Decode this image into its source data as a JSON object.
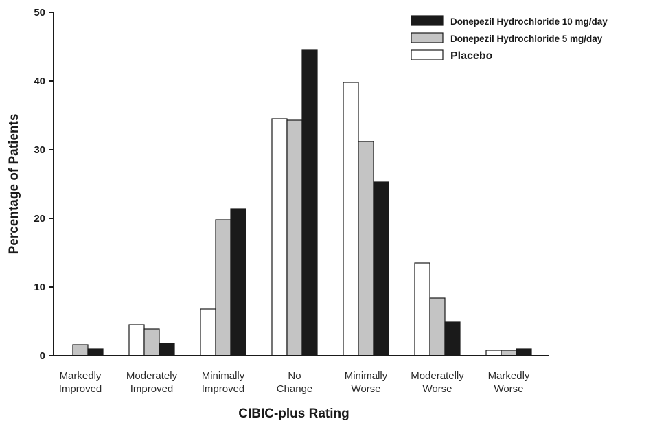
{
  "chart_data": {
    "type": "bar",
    "xlabel": "CIBIC-plus Rating",
    "ylabel": "Percentage of Patients",
    "ylim": [
      0,
      50
    ],
    "yticks": [
      0,
      10,
      20,
      30,
      40,
      50
    ],
    "categories": [
      [
        "Markedly",
        "Improved"
      ],
      [
        "Moderately",
        "Improved"
      ],
      [
        "Minimally",
        "Improved"
      ],
      [
        "No",
        "Change"
      ],
      [
        "Minimally",
        "Worse"
      ],
      [
        "Moderatelly",
        "Worse"
      ],
      [
        "Markedly",
        "Worse"
      ]
    ],
    "series": [
      {
        "name": "Placebo",
        "color": "#ffffff",
        "values": [
          0,
          4.5,
          6.8,
          34.5,
          39.8,
          13.5,
          0.8
        ]
      },
      {
        "name": "Donepezil Hydrochloride 5 mg/day",
        "color": "#c4c4c4",
        "values": [
          1.6,
          3.9,
          19.8,
          34.3,
          31.2,
          8.4,
          0.8
        ]
      },
      {
        "name": "Donepezil Hydrochloride 10 mg/day",
        "color": "#1a1a1a",
        "values": [
          1.0,
          1.8,
          21.4,
          44.5,
          25.3,
          4.9,
          1.0
        ]
      }
    ],
    "legend": {
      "position": "top-right",
      "order": [
        "Donepezil Hydrochloride 10 mg/day",
        "Donepezil Hydrochloride 5 mg/day",
        "Placebo"
      ]
    },
    "grid": false
  }
}
